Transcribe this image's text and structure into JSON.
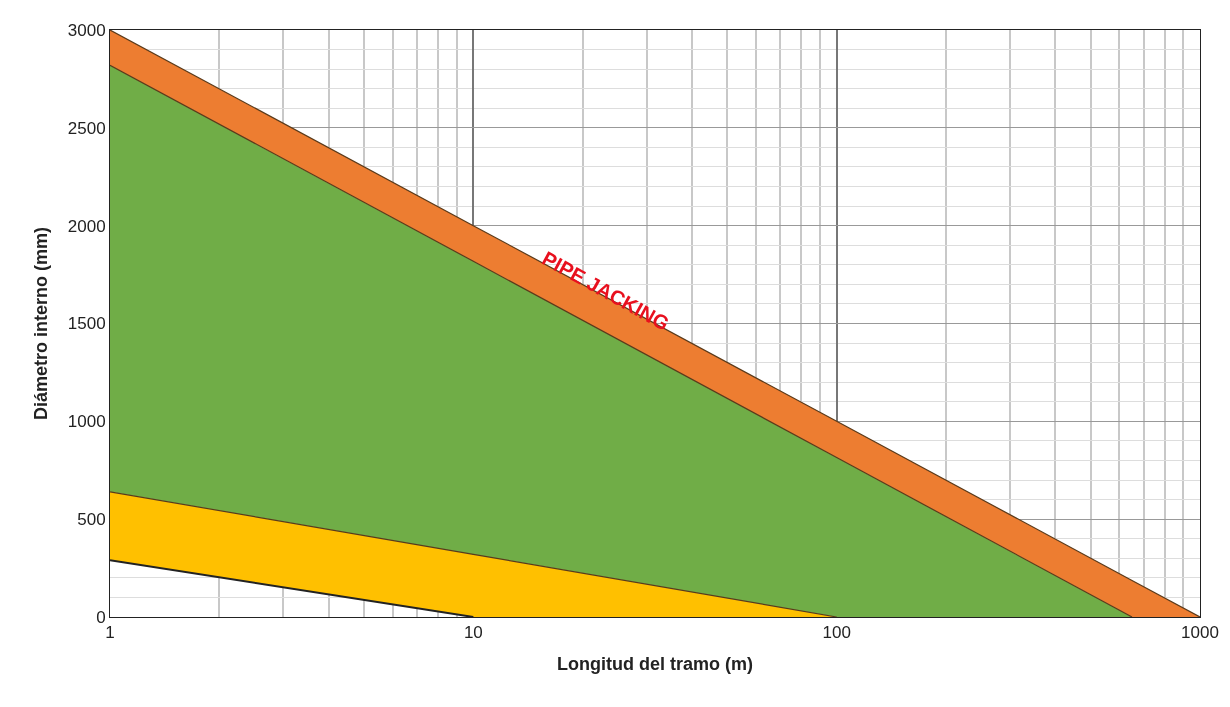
{
  "chart_data": {
    "type": "area",
    "xlabel": "Longitud del tramo (m)",
    "ylabel": "Diámetro interno (mm)",
    "log": "x",
    "xlim": [
      1,
      1000
    ],
    "xticks": [
      1,
      10,
      100,
      1000
    ],
    "ylim": [
      0,
      3000
    ],
    "yticks": [
      0,
      500,
      1000,
      1500,
      2000,
      2500,
      3000
    ],
    "grid": true,
    "series": [
      {
        "type": "line",
        "color": "#222222",
        "x": [
          1,
          10
        ],
        "values": [
          290,
          0
        ]
      },
      {
        "color": "#ffc000",
        "x": [
          1,
          10,
          100
        ],
        "values": [
          640,
          320,
          0
        ]
      },
      {
        "color": "#70ad47",
        "x": [
          1,
          10,
          100,
          650
        ],
        "values": [
          2820,
          1818,
          815,
          0
        ]
      },
      {
        "color": "#ed7d31",
        "x": [
          1,
          10,
          100,
          650,
          1000
        ],
        "values": [
          3000,
          2000,
          1000,
          187,
          0
        ]
      }
    ],
    "annotations": [
      "PIPE JACKING"
    ]
  }
}
